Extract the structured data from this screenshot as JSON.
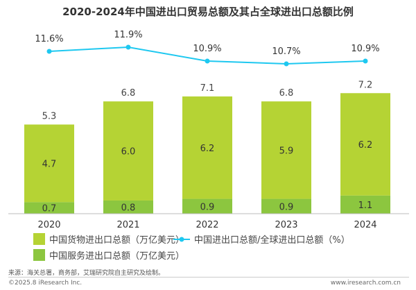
{
  "chart_data": {
    "type": "bar",
    "title": "2020-2024年中国进出口贸易总额及其占全球进出口总额比例",
    "categories": [
      "2020",
      "2021",
      "2022",
      "2023",
      "2024"
    ],
    "totals": [
      "5.3",
      "6.8",
      "7.1",
      "6.8",
      "7.2"
    ],
    "series": [
      {
        "name": "中国服务进出口总额（万亿美元）",
        "type": "bar",
        "values": [
          0.7,
          0.8,
          0.9,
          0.9,
          1.1
        ],
        "color": "#8cc63f"
      },
      {
        "name": "中国货物进出口总额（万亿美元）",
        "type": "bar",
        "values": [
          4.7,
          6.0,
          6.2,
          5.9,
          6.2
        ],
        "color": "#b5d334"
      },
      {
        "name": "中国进出口总额/全球进出口总额（%）",
        "type": "line",
        "values": [
          11.6,
          11.9,
          10.9,
          10.7,
          10.9
        ],
        "labels": [
          "11.6%",
          "11.9%",
          "10.9%",
          "10.7%",
          "10.9%"
        ],
        "color": "#1ec8f0"
      }
    ],
    "legend": "bottom",
    "grid": false
  },
  "footer": {
    "source": "来源：海关总署，商务部，艾瑞研究院自主研究及绘制。",
    "copyright": "©2025.8 iResearch Inc.",
    "site": "www.iresearch.com.cn"
  }
}
